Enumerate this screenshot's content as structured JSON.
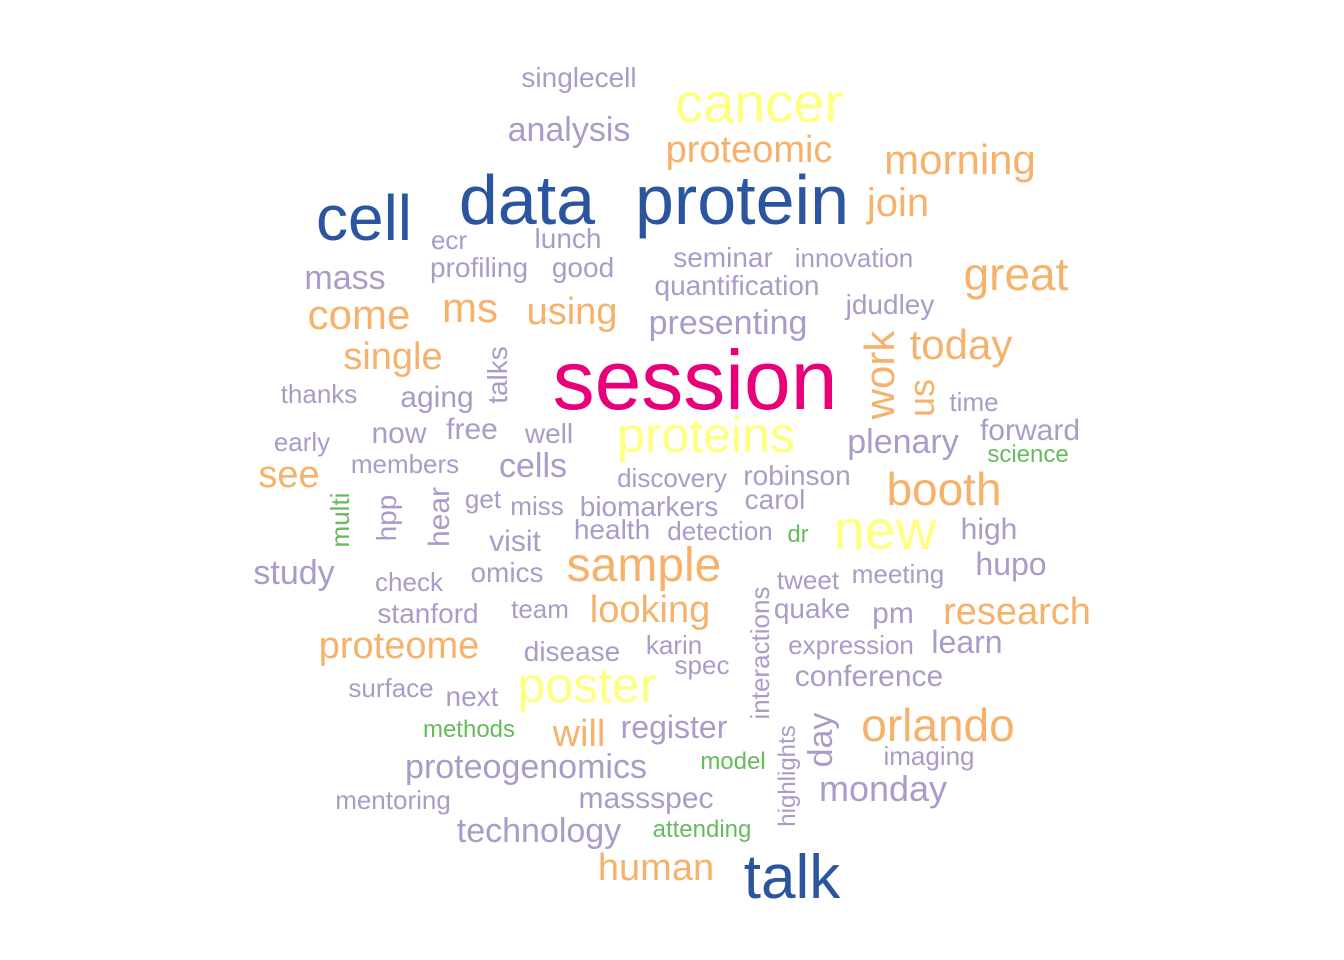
{
  "palette": {
    "magenta": "#e7007a",
    "blue": "#2b559f",
    "yellow": "#ffff80",
    "orange": "#f6b26b",
    "lavender": "#ab9bc9",
    "green": "#66bb5c"
  },
  "words": [
    {
      "text": "session",
      "color": "magenta",
      "vertical": false
    },
    {
      "text": "data",
      "color": "blue",
      "vertical": false
    },
    {
      "text": "protein",
      "color": "blue",
      "vertical": false
    },
    {
      "text": "cell",
      "color": "blue",
      "vertical": false
    },
    {
      "text": "talk",
      "color": "blue",
      "vertical": false
    },
    {
      "text": "cancer",
      "color": "yellow",
      "vertical": false
    },
    {
      "text": "proteins",
      "color": "yellow",
      "vertical": false
    },
    {
      "text": "new",
      "color": "yellow",
      "vertical": false
    },
    {
      "text": "poster",
      "color": "yellow",
      "vertical": false
    },
    {
      "text": "sample",
      "color": "orange",
      "vertical": false
    },
    {
      "text": "orlando",
      "color": "orange",
      "vertical": false
    },
    {
      "text": "great",
      "color": "orange",
      "vertical": false
    },
    {
      "text": "morning",
      "color": "orange",
      "vertical": false
    },
    {
      "text": "proteomic",
      "color": "orange",
      "vertical": false
    },
    {
      "text": "join",
      "color": "orange",
      "vertical": false
    },
    {
      "text": "today",
      "color": "orange",
      "vertical": false
    },
    {
      "text": "work",
      "color": "orange",
      "vertical": true
    },
    {
      "text": "us",
      "color": "orange",
      "vertical": true
    },
    {
      "text": "booth",
      "color": "orange",
      "vertical": false
    },
    {
      "text": "research",
      "color": "orange",
      "vertical": false
    },
    {
      "text": "proteome",
      "color": "orange",
      "vertical": false
    },
    {
      "text": "looking",
      "color": "orange",
      "vertical": false
    },
    {
      "text": "will",
      "color": "orange",
      "vertical": false
    },
    {
      "text": "human",
      "color": "orange",
      "vertical": false
    },
    {
      "text": "come",
      "color": "orange",
      "vertical": false
    },
    {
      "text": "ms",
      "color": "orange",
      "vertical": false
    },
    {
      "text": "using",
      "color": "orange",
      "vertical": false
    },
    {
      "text": "single",
      "color": "orange",
      "vertical": false
    },
    {
      "text": "see",
      "color": "orange",
      "vertical": false
    },
    {
      "text": "singlecell",
      "color": "lavender",
      "vertical": false
    },
    {
      "text": "analysis",
      "color": "lavender",
      "vertical": false
    },
    {
      "text": "ecr",
      "color": "lavender",
      "vertical": false
    },
    {
      "text": "lunch",
      "color": "lavender",
      "vertical": false
    },
    {
      "text": "mass",
      "color": "lavender",
      "vertical": false
    },
    {
      "text": "profiling",
      "color": "lavender",
      "vertical": false
    },
    {
      "text": "good",
      "color": "lavender",
      "vertical": false
    },
    {
      "text": "seminar",
      "color": "lavender",
      "vertical": false
    },
    {
      "text": "innovation",
      "color": "lavender",
      "vertical": false
    },
    {
      "text": "quantification",
      "color": "lavender",
      "vertical": false
    },
    {
      "text": "jdudley",
      "color": "lavender",
      "vertical": false
    },
    {
      "text": "presenting",
      "color": "lavender",
      "vertical": false
    },
    {
      "text": "talks",
      "color": "lavender",
      "vertical": true
    },
    {
      "text": "thanks",
      "color": "lavender",
      "vertical": false
    },
    {
      "text": "aging",
      "color": "lavender",
      "vertical": false
    },
    {
      "text": "time",
      "color": "lavender",
      "vertical": false
    },
    {
      "text": "early",
      "color": "lavender",
      "vertical": false
    },
    {
      "text": "now",
      "color": "lavender",
      "vertical": false
    },
    {
      "text": "free",
      "color": "lavender",
      "vertical": false
    },
    {
      "text": "well",
      "color": "lavender",
      "vertical": false
    },
    {
      "text": "plenary",
      "color": "lavender",
      "vertical": false
    },
    {
      "text": "forward",
      "color": "lavender",
      "vertical": false
    },
    {
      "text": "science",
      "color": "green",
      "vertical": false
    },
    {
      "text": "members",
      "color": "lavender",
      "vertical": false
    },
    {
      "text": "cells",
      "color": "lavender",
      "vertical": false
    },
    {
      "text": "discovery",
      "color": "lavender",
      "vertical": false
    },
    {
      "text": "robinson",
      "color": "lavender",
      "vertical": false
    },
    {
      "text": "multi",
      "color": "green",
      "vertical": true
    },
    {
      "text": "hpp",
      "color": "lavender",
      "vertical": true
    },
    {
      "text": "hear",
      "color": "lavender",
      "vertical": true
    },
    {
      "text": "get",
      "color": "lavender",
      "vertical": false
    },
    {
      "text": "miss",
      "color": "lavender",
      "vertical": false
    },
    {
      "text": "biomarkers",
      "color": "lavender",
      "vertical": false
    },
    {
      "text": "carol",
      "color": "lavender",
      "vertical": false
    },
    {
      "text": "visit",
      "color": "lavender",
      "vertical": false
    },
    {
      "text": "health",
      "color": "lavender",
      "vertical": false
    },
    {
      "text": "detection",
      "color": "lavender",
      "vertical": false
    },
    {
      "text": "dr",
      "color": "green",
      "vertical": false
    },
    {
      "text": "high",
      "color": "lavender",
      "vertical": false
    },
    {
      "text": "study",
      "color": "lavender",
      "vertical": false
    },
    {
      "text": "check",
      "color": "lavender",
      "vertical": false
    },
    {
      "text": "omics",
      "color": "lavender",
      "vertical": false
    },
    {
      "text": "interactions",
      "color": "lavender",
      "vertical": true
    },
    {
      "text": "tweet",
      "color": "lavender",
      "vertical": false
    },
    {
      "text": "meeting",
      "color": "lavender",
      "vertical": false
    },
    {
      "text": "hupo",
      "color": "lavender",
      "vertical": false
    },
    {
      "text": "stanford",
      "color": "lavender",
      "vertical": false
    },
    {
      "text": "team",
      "color": "lavender",
      "vertical": false
    },
    {
      "text": "quake",
      "color": "lavender",
      "vertical": false
    },
    {
      "text": "pm",
      "color": "lavender",
      "vertical": false
    },
    {
      "text": "disease",
      "color": "lavender",
      "vertical": false
    },
    {
      "text": "karin",
      "color": "lavender",
      "vertical": false
    },
    {
      "text": "expression",
      "color": "lavender",
      "vertical": false
    },
    {
      "text": "learn",
      "color": "lavender",
      "vertical": false
    },
    {
      "text": "spec",
      "color": "lavender",
      "vertical": false
    },
    {
      "text": "conference",
      "color": "lavender",
      "vertical": false
    },
    {
      "text": "surface",
      "color": "lavender",
      "vertical": false
    },
    {
      "text": "next",
      "color": "lavender",
      "vertical": false
    },
    {
      "text": "methods",
      "color": "green",
      "vertical": false
    },
    {
      "text": "register",
      "color": "lavender",
      "vertical": false
    },
    {
      "text": "highlights",
      "color": "lavender",
      "vertical": true
    },
    {
      "text": "day",
      "color": "lavender",
      "vertical": true
    },
    {
      "text": "imaging",
      "color": "lavender",
      "vertical": false
    },
    {
      "text": "model",
      "color": "green",
      "vertical": false
    },
    {
      "text": "proteogenomics",
      "color": "lavender",
      "vertical": false
    },
    {
      "text": "monday",
      "color": "lavender",
      "vertical": false
    },
    {
      "text": "mentoring",
      "color": "lavender",
      "vertical": false
    },
    {
      "text": "massspec",
      "color": "lavender",
      "vertical": false
    },
    {
      "text": "technology",
      "color": "lavender",
      "vertical": false
    },
    {
      "text": "attending",
      "color": "green",
      "vertical": false
    }
  ]
}
